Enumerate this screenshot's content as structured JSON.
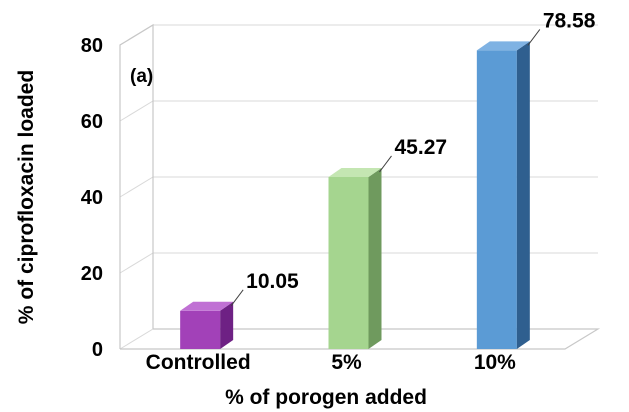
{
  "chart_data": {
    "type": "bar",
    "panel_label": "(a)",
    "xlabel": "% of porogen added",
    "ylabel": "% of ciprofloxacin loaded",
    "categories": [
      "Controlled",
      "5%",
      "10%"
    ],
    "values": [
      10.05,
      45.27,
      78.58
    ],
    "value_labels": [
      "10.05",
      "45.27",
      "78.58"
    ],
    "ylim": [
      0,
      80
    ],
    "yticks": [
      0,
      20,
      40,
      60,
      80
    ],
    "grid": true,
    "legend": "none",
    "bar_colors": [
      {
        "front": "#a241b8",
        "side": "#6e2184",
        "top": "#c070d4"
      },
      {
        "front": "#a5d58f",
        "side": "#6f9a5e",
        "top": "#c4e6b2"
      },
      {
        "front": "#5b9bd5",
        "side": "#2f5f8f",
        "top": "#7fb2e3"
      }
    ]
  }
}
